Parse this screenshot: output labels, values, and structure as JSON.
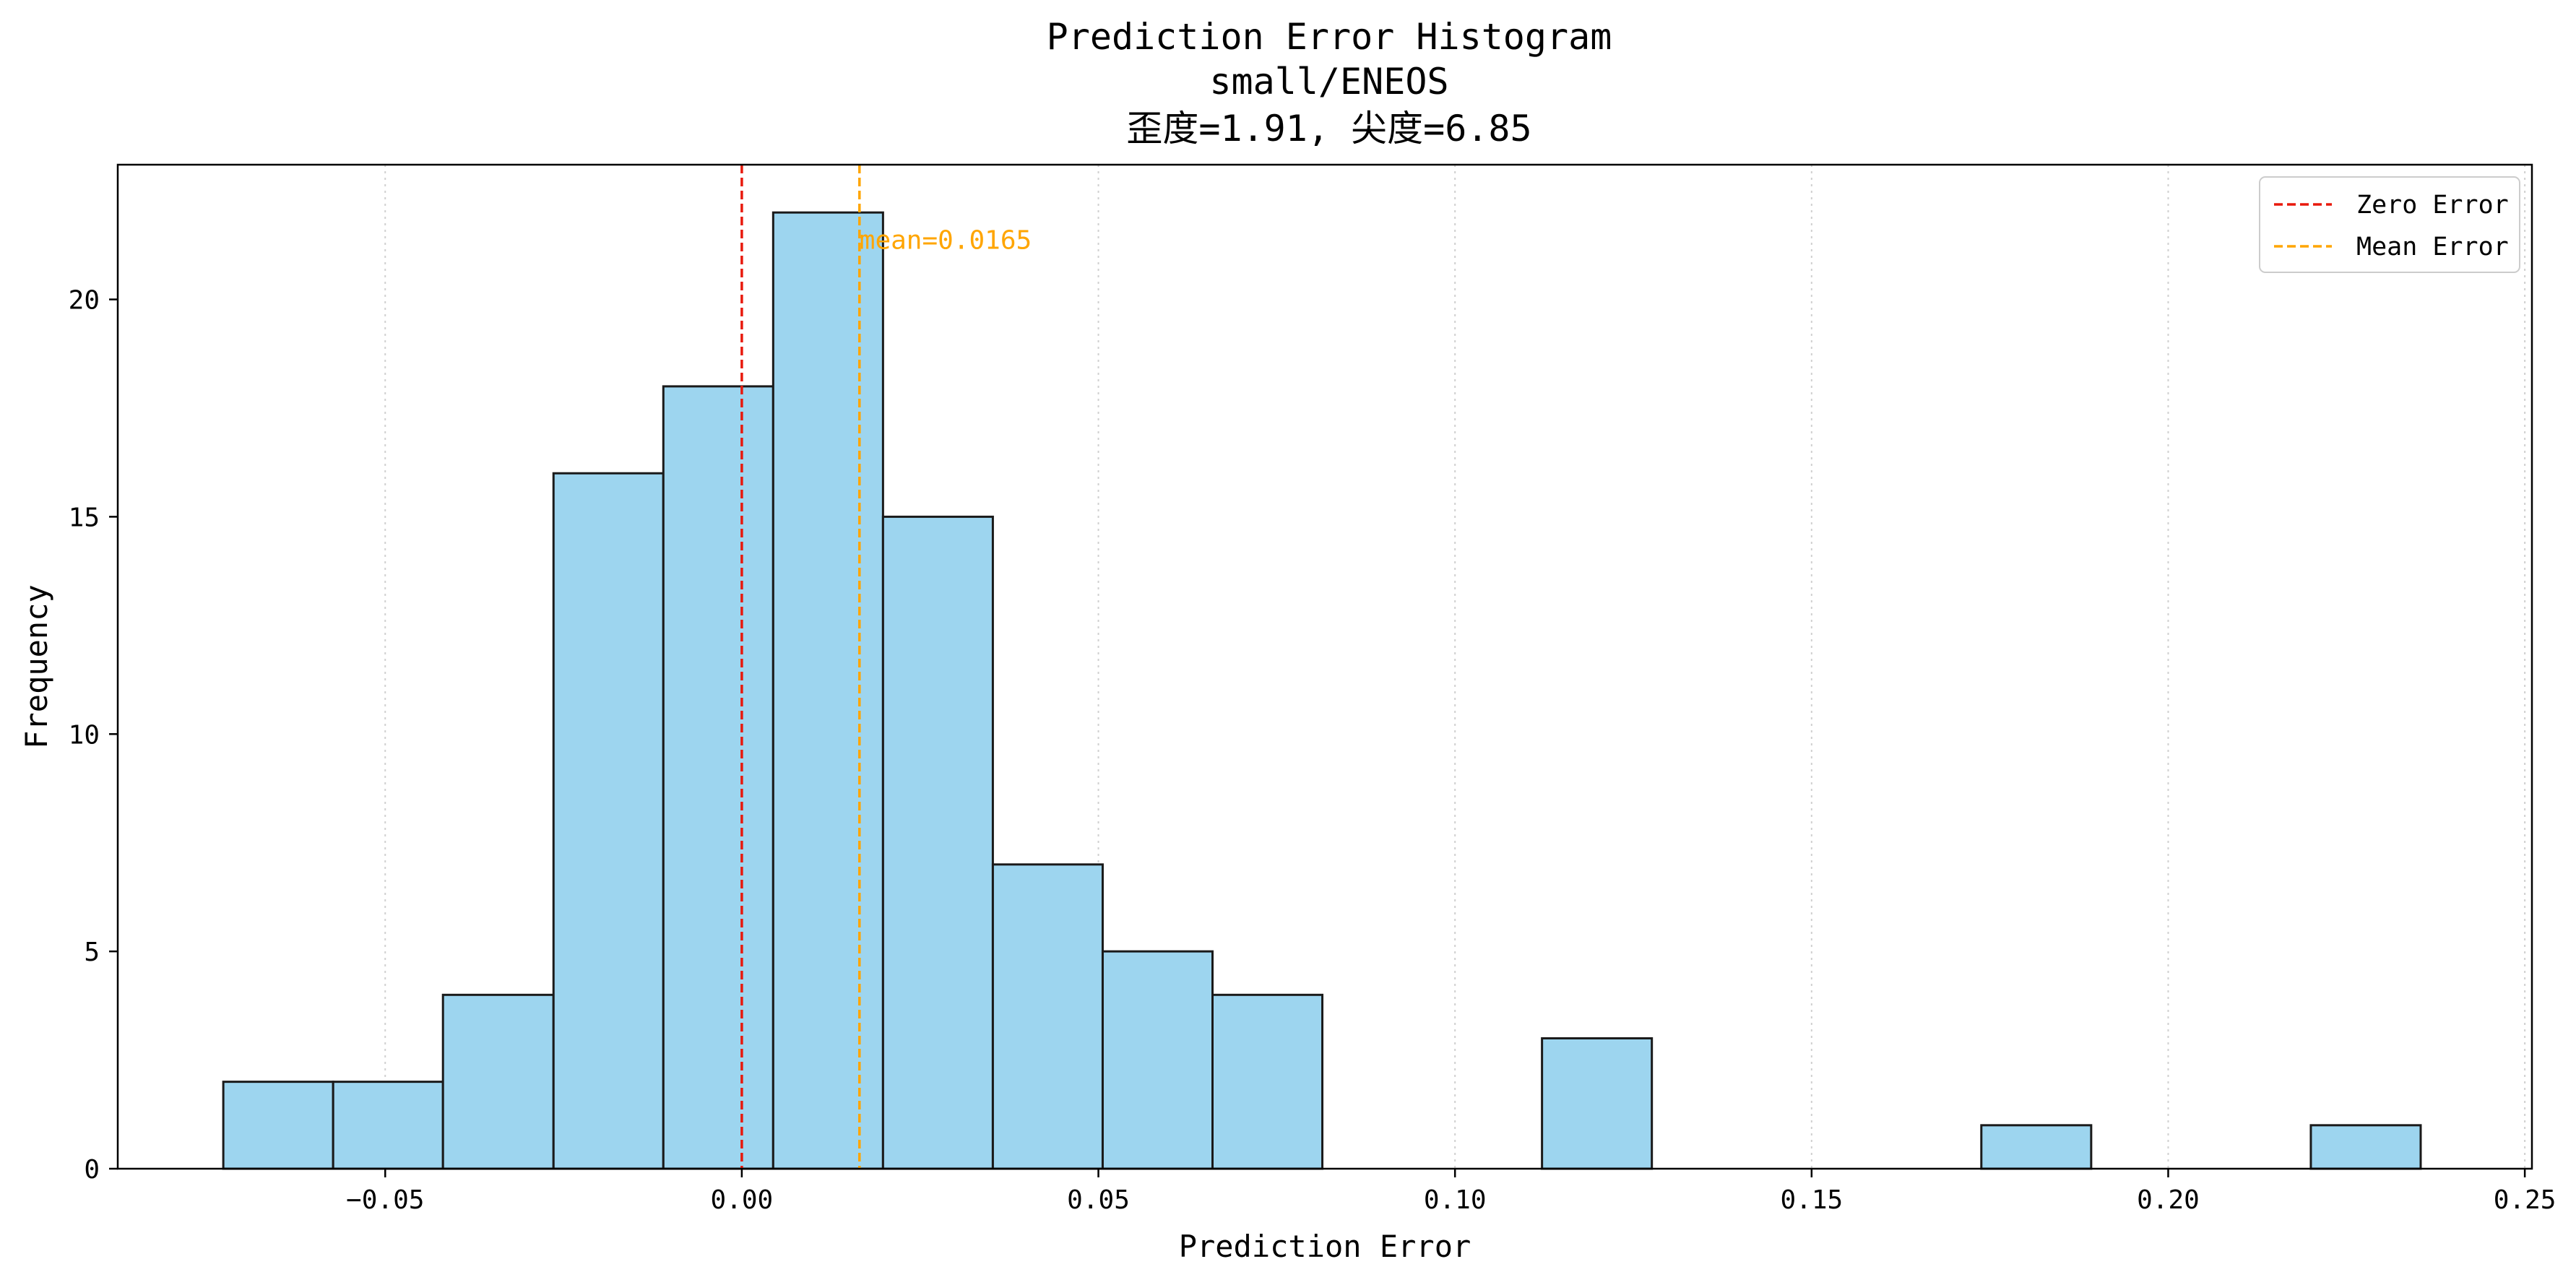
{
  "chart_data": {
    "type": "bar",
    "title": "Prediction Error Histogram",
    "subtitle_1": "small/ENEOS",
    "subtitle_2": "歪度=1.91, 尖度=6.85",
    "xlabel": "Prediction Error",
    "ylabel": "Frequency",
    "xlim": [
      -0.0875,
      0.251
    ],
    "ylim": [
      0,
      23.1
    ],
    "x_ticks": [
      -0.05,
      0.0,
      0.05,
      0.1,
      0.15,
      0.2,
      0.25
    ],
    "x_tick_labels": [
      "−0.05",
      "0.00",
      "0.05",
      "0.10",
      "0.15",
      "0.20",
      "0.25"
    ],
    "y_ticks": [
      0,
      5,
      10,
      15,
      20
    ],
    "y_tick_labels": [
      "0",
      "5",
      "10",
      "15",
      "20"
    ],
    "grid": "x-dotted",
    "bin_edges": [
      -0.0727,
      -0.0573,
      -0.0419,
      -0.0264,
      -0.011,
      0.0044,
      0.0198,
      0.0352,
      0.0506,
      0.066,
      0.0814,
      0.0968,
      0.1122,
      0.1276,
      0.143,
      0.1584,
      0.1738,
      0.1892,
      0.2046,
      0.22,
      0.2354
    ],
    "values": [
      2,
      2,
      4,
      16,
      18,
      22,
      15,
      7,
      5,
      4,
      0,
      0,
      3,
      0,
      0,
      0,
      1,
      0,
      0,
      1
    ],
    "bar_color": "#9dd5ef",
    "edge_color": "#1a1a1a",
    "vlines": [
      {
        "name": "Zero Error",
        "x": 0.0,
        "color": "#e8190c"
      },
      {
        "name": "Mean Error",
        "x": 0.0165,
        "color": "#ffa500"
      }
    ],
    "annotation": {
      "text": "mean=0.0165",
      "x": 0.0165,
      "y": 21,
      "color": "#ffa500"
    },
    "legend": {
      "placement": "top-right",
      "entries": [
        {
          "label": "Zero Error",
          "color": "#e8190c"
        },
        {
          "label": "Mean Error",
          "color": "#ffa500"
        }
      ]
    }
  }
}
